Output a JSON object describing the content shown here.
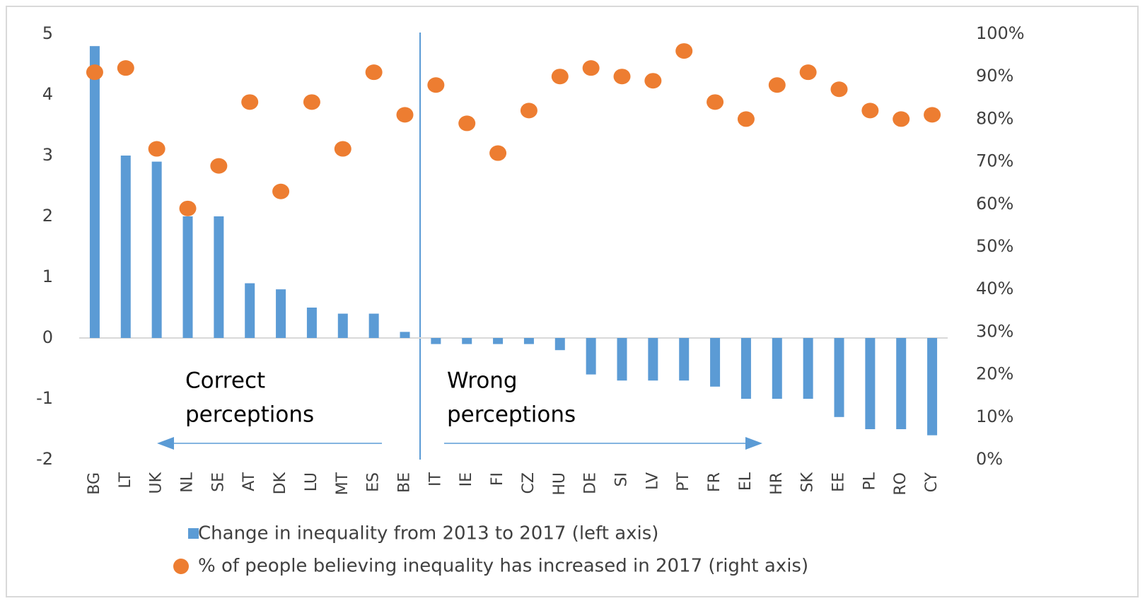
{
  "chart_data": {
    "type": "bar",
    "categories": [
      "BG",
      "LT",
      "UK",
      "NL",
      "SE",
      "AT",
      "DK",
      "LU",
      "MT",
      "ES",
      "BE",
      "IT",
      "IE",
      "FI",
      "CZ",
      "HU",
      "DE",
      "SI",
      "LV",
      "PT",
      "FR",
      "EL",
      "HR",
      "SK",
      "EE",
      "PL",
      "RO",
      "CY"
    ],
    "series": [
      {
        "name": "Change in inequality from 2013 to 2017 (left axis)",
        "type": "bar",
        "color": "#5b9bd5",
        "values": [
          4.8,
          3.0,
          2.9,
          2.0,
          2.0,
          0.9,
          0.8,
          0.5,
          0.4,
          0.4,
          0.1,
          -0.1,
          -0.1,
          -0.1,
          -0.1,
          -0.2,
          -0.6,
          -0.7,
          -0.7,
          -0.7,
          -0.8,
          -1.0,
          -1.0,
          -1.0,
          -1.3,
          -1.5,
          -1.5,
          -1.6
        ]
      },
      {
        "name": "% of people believing inequality has increased in 2017 (right axis)",
        "type": "scatter",
        "axis": "y2",
        "color": "#ed7d31",
        "values": [
          91,
          92,
          73,
          59,
          69,
          84,
          63,
          84,
          73,
          91,
          81,
          88,
          79,
          72,
          82,
          90,
          92,
          90,
          89,
          96,
          84,
          80,
          88,
          91,
          87,
          82,
          80,
          81
        ]
      }
    ],
    "ylim": [
      -2,
      5
    ],
    "yticks": [
      -2,
      -1,
      0,
      1,
      2,
      3,
      4,
      5
    ],
    "y2lim": [
      0,
      100
    ],
    "y2ticks": [
      {
        "value": 0,
        "label": "0%"
      },
      {
        "value": 10,
        "label": "10%"
      },
      {
        "value": 20,
        "label": "20%"
      },
      {
        "value": 30,
        "label": "30%"
      },
      {
        "value": 40,
        "label": "40%"
      },
      {
        "value": 50,
        "label": "50%"
      },
      {
        "value": 60,
        "label": "60%"
      },
      {
        "value": 70,
        "label": "70%"
      },
      {
        "value": 80,
        "label": "80%"
      },
      {
        "value": 90,
        "label": "90%"
      },
      {
        "value": 100,
        "label": "100%"
      }
    ],
    "grid": false,
    "legend": "bottom",
    "annotations": [
      {
        "lines": [
          "Correct",
          "perceptions"
        ]
      },
      {
        "lines": [
          "Wrong",
          "perceptions"
        ]
      }
    ]
  }
}
